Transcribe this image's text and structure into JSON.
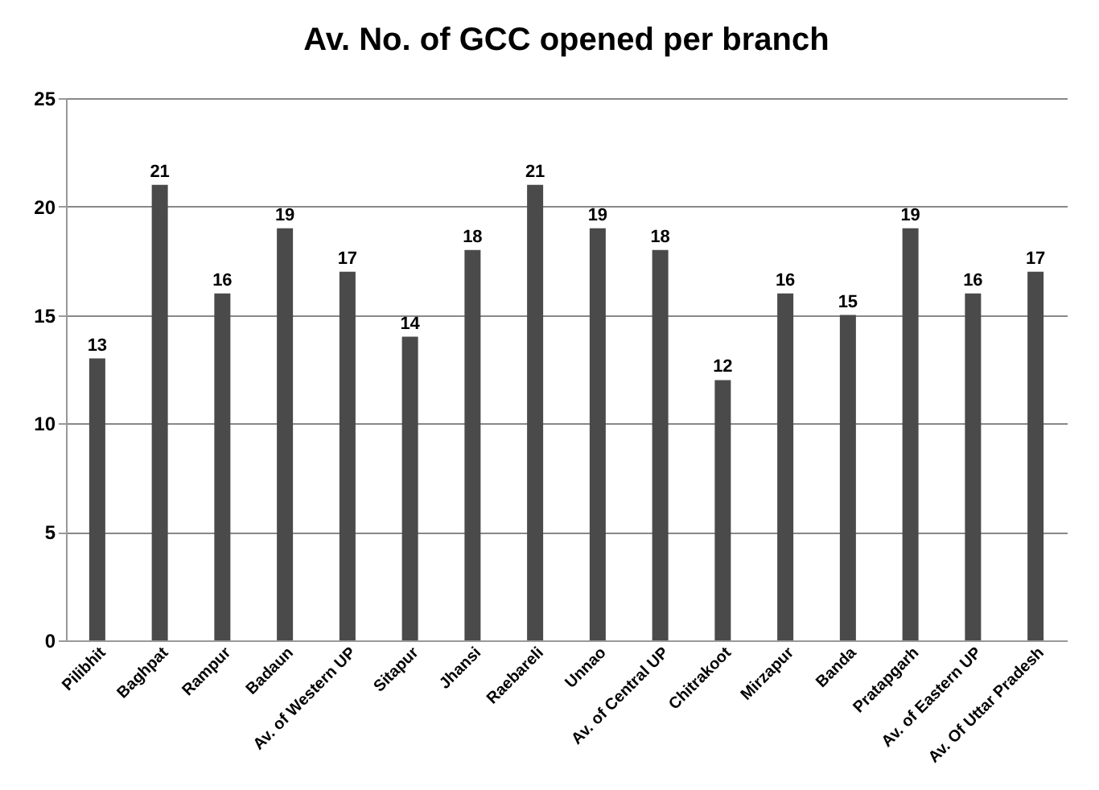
{
  "chart_data": {
    "type": "bar",
    "title": "Av. No. of GCC opened per branch",
    "categories": [
      "Pilibhit",
      "Baghpat",
      "Rampur",
      "Badaun",
      "Av. of Western UP",
      "Sitapur",
      "Jhansi",
      "Raebareli",
      "Unnao",
      "Av. of Central UP",
      "Chitrakoot",
      "Mirzapur",
      "Banda",
      "Pratapgarh",
      "Av. of Eastern UP",
      "Av. Of Uttar Pradesh"
    ],
    "values": [
      13,
      21,
      16,
      19,
      17,
      14,
      18,
      21,
      19,
      18,
      12,
      16,
      15,
      19,
      16,
      17
    ],
    "color": "#4a4a4a",
    "ylim": [
      0,
      25
    ],
    "yticks": [
      0,
      5,
      10,
      15,
      20,
      25
    ],
    "grid": "y",
    "data_labels": true
  }
}
